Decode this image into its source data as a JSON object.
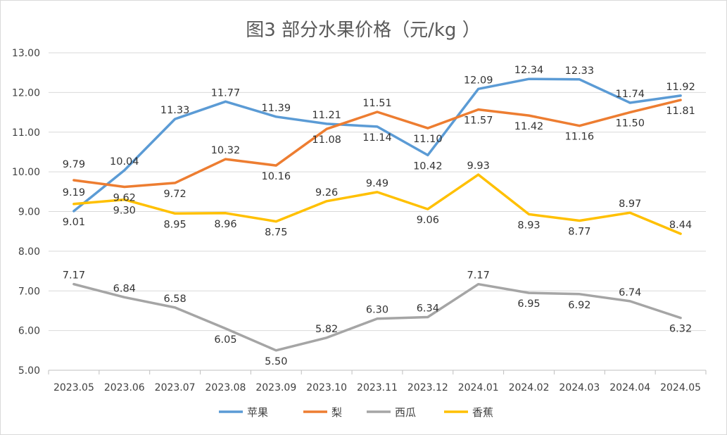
{
  "chart_data": {
    "type": "line",
    "title": "图3  部分水果价格（元/kg ）",
    "categories": [
      "2023.05",
      "2023.06",
      "2023.07",
      "2023.08",
      "2023.09",
      "2023.10",
      "2023.11",
      "2023.12",
      "2024.01",
      "2024.02",
      "2024.03",
      "2024.04",
      "2024.05"
    ],
    "ylim": [
      5,
      13
    ],
    "yticks": [
      "5.00",
      "6.00",
      "7.00",
      "8.00",
      "9.00",
      "10.00",
      "11.00",
      "12.00",
      "13.00"
    ],
    "grid": true,
    "legend_position": "bottom",
    "series": [
      {
        "name": "苹果",
        "color": "#5b9bd5",
        "values": [
          9.01,
          10.04,
          11.33,
          11.77,
          11.39,
          11.21,
          11.14,
          10.42,
          12.09,
          12.34,
          12.33,
          11.74,
          11.92
        ]
      },
      {
        "name": "梨",
        "color": "#ed7d31",
        "values": [
          9.79,
          9.62,
          9.72,
          10.32,
          10.16,
          11.08,
          11.51,
          11.1,
          11.57,
          11.42,
          11.16,
          11.5,
          11.81
        ]
      },
      {
        "name": "西瓜",
        "color": "#a5a5a5",
        "values": [
          7.17,
          6.84,
          6.58,
          6.05,
          5.5,
          5.82,
          6.3,
          6.34,
          7.17,
          6.95,
          6.92,
          6.74,
          6.32
        ]
      },
      {
        "name": "香蕉",
        "color": "#ffc000",
        "values": [
          9.19,
          9.3,
          8.95,
          8.96,
          8.75,
          9.26,
          9.49,
          9.06,
          9.93,
          8.93,
          8.77,
          8.97,
          8.44
        ]
      }
    ]
  }
}
